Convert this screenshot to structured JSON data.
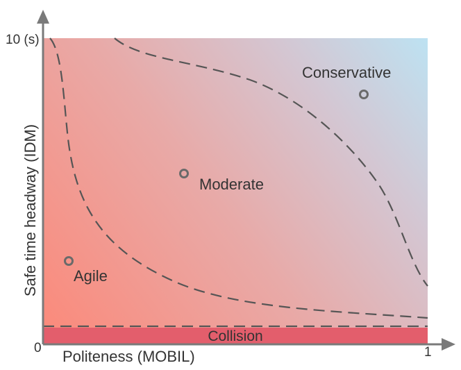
{
  "axes": {
    "x_label": "Politeness (MOBIL)",
    "y_label": "Safe time headway (IDM)",
    "origin_label": "0",
    "x_max_label": "1",
    "y_max_label": "10 (s)"
  },
  "regions": {
    "collision_label": "Collision"
  },
  "points": [
    {
      "label": "Agile"
    },
    {
      "label": "Moderate"
    },
    {
      "label": "Conservative"
    }
  ],
  "colors": {
    "gradient_agile": "#fb8a7b",
    "gradient_conservative": "#bde2f2",
    "collision_band": "#e35e6c",
    "boundary_line": "#555555",
    "axis": "#7a7a7a"
  }
}
